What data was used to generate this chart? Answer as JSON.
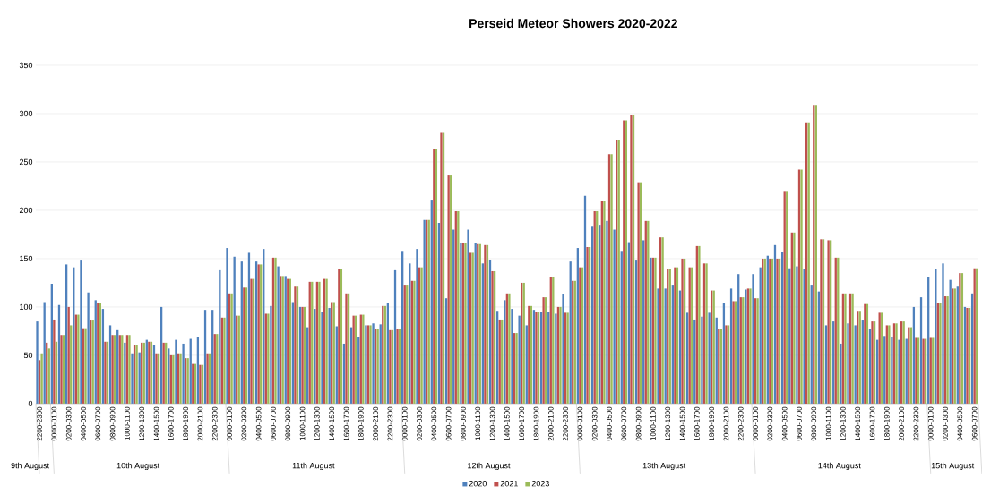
{
  "chart_data": {
    "type": "bar",
    "title": "Perseid Meteor Showers 2020-2022",
    "categories": [
      "2200-2300",
      null,
      "0000-0100",
      null,
      "0200-0300",
      null,
      "0400-0500",
      null,
      "0600-0700",
      null,
      "0800-0900",
      null,
      "1000-1100",
      null,
      "1200-1300",
      null,
      "1400-1500",
      null,
      "1600-1700",
      null,
      "1800-1900",
      null,
      "2000-2100",
      null,
      "2200-2300",
      null,
      "0000-0100",
      null,
      "0200-0300",
      null,
      "0400-0500",
      null,
      "0600-0700",
      null,
      "0800-0900",
      null,
      "1000-1100",
      null,
      "1200-1300",
      null,
      "1400-1500",
      null,
      "1600-1700",
      null,
      "1800-1900",
      null,
      "2000-2100",
      null,
      "2200-2300",
      null,
      "0000-0100",
      null,
      "0200-0300",
      null,
      "0400-0500",
      null,
      "0600-0700",
      null,
      "0800-0900",
      null,
      "1000-1100",
      null,
      "1200-1300",
      null,
      "1400-1500",
      null,
      "1600-1700",
      null,
      "1800-1900",
      null,
      "2000-2100",
      null,
      "2200-2300",
      null,
      "0000-0100",
      null,
      "0200-0300",
      null,
      "0400-0500",
      null,
      "0600-0700",
      null,
      "0800-0900",
      null,
      "1000-1100",
      null,
      "1200-1300",
      null,
      "1400-1500",
      null,
      "1600-1700",
      null,
      "1800-1900",
      null,
      "2000-2100",
      null,
      "2200-2300",
      null,
      "0000-0100",
      null,
      "0200-0300",
      null,
      "0400-0500",
      null,
      "0600-0700",
      null,
      "0800-0900",
      null,
      "1000-1100",
      null,
      "1200-1300",
      null,
      "1400-1500",
      null,
      "1600-1700",
      null,
      "1800-1900",
      null,
      "2000-2100",
      null,
      "2200-2300",
      null,
      "0000-0100",
      null,
      "0200-0300",
      null,
      "0400-0500",
      null,
      "0600-0700"
    ],
    "series": [
      {
        "name": "2020",
        "color": "#4f81bd",
        "values": [
          85,
          105,
          124,
          102,
          144,
          141,
          148,
          115,
          107,
          98,
          81,
          76,
          63,
          52,
          53,
          66,
          61,
          100,
          57,
          66,
          62,
          67,
          69,
          97,
          97,
          138,
          161,
          152,
          147,
          156,
          147,
          160,
          101,
          142,
          132,
          105,
          100,
          79,
          98,
          95,
          99,
          80,
          62,
          79,
          69,
          81,
          83,
          82,
          104,
          138,
          158,
          145,
          160,
          190,
          211,
          187,
          109,
          180,
          166,
          180,
          166,
          145,
          149,
          96,
          107,
          98,
          91,
          81,
          97,
          95,
          95,
          93,
          113,
          147,
          161,
          215,
          183,
          185,
          189,
          180,
          158,
          167,
          148,
          169,
          151,
          119,
          119,
          123,
          117,
          94,
          87,
          90,
          94,
          89,
          104,
          119,
          134,
          118,
          134,
          141,
          153,
          164,
          157,
          140,
          142,
          139,
          123,
          116,
          81,
          85,
          62,
          83,
          81,
          86,
          77,
          66,
          70,
          69,
          66,
          67,
          100,
          110,
          131,
          139,
          145,
          128,
          121,
          100,
          114
        ]
      },
      {
        "name": "2021",
        "color": "#c0504d",
        "values": [
          45,
          63,
          87,
          71,
          100,
          92,
          78,
          86,
          104,
          64,
          71,
          71,
          71,
          61,
          63,
          64,
          52,
          63,
          50,
          52,
          47,
          41,
          40,
          52,
          72,
          89,
          114,
          91,
          120,
          129,
          144,
          93,
          151,
          132,
          129,
          121,
          100,
          126,
          126,
          129,
          105,
          139,
          114,
          91,
          92,
          81,
          77,
          101,
          76,
          77,
          123,
          127,
          141,
          190,
          263,
          280,
          236,
          199,
          166,
          156,
          165,
          164,
          137,
          87,
          114,
          73,
          125,
          101,
          95,
          110,
          131,
          100,
          94,
          127,
          141,
          162,
          199,
          210,
          258,
          273,
          293,
          298,
          229,
          189,
          151,
          172,
          139,
          141,
          150,
          141,
          163,
          145,
          117,
          77,
          81,
          106,
          110,
          119,
          109,
          150,
          150,
          150,
          220,
          177,
          242,
          291,
          309,
          170,
          169,
          151,
          114,
          114,
          96,
          103,
          85,
          94,
          81,
          83,
          85,
          79,
          68,
          67,
          68,
          104,
          111,
          119,
          135,
          99,
          140
        ]
      },
      {
        "name": "2023",
        "color": "#9bbb59",
        "values": [
          52,
          57,
          64,
          71,
          81,
          92,
          78,
          86,
          104,
          64,
          71,
          71,
          71,
          61,
          63,
          64,
          52,
          63,
          50,
          52,
          47,
          41,
          40,
          52,
          72,
          89,
          114,
          91,
          120,
          129,
          144,
          93,
          151,
          132,
          129,
          121,
          100,
          126,
          126,
          129,
          105,
          139,
          114,
          91,
          92,
          81,
          77,
          101,
          76,
          77,
          123,
          127,
          141,
          190,
          263,
          280,
          236,
          199,
          166,
          156,
          165,
          164,
          137,
          87,
          114,
          73,
          125,
          101,
          95,
          110,
          131,
          100,
          94,
          127,
          141,
          162,
          199,
          210,
          258,
          273,
          293,
          298,
          229,
          189,
          151,
          172,
          139,
          141,
          150,
          141,
          163,
          145,
          117,
          77,
          81,
          106,
          110,
          119,
          109,
          150,
          150,
          150,
          220,
          177,
          242,
          291,
          309,
          170,
          169,
          151,
          114,
          114,
          96,
          103,
          85,
          94,
          81,
          83,
          85,
          79,
          68,
          67,
          68,
          104,
          111,
          119,
          135,
          99,
          140
        ]
      }
    ],
    "ylim": [
      0,
      350
    ],
    "yticks": [
      0,
      50,
      100,
      150,
      200,
      250,
      300,
      350
    ],
    "grid": "y",
    "legend": "bottom",
    "annotations": [
      "9th August",
      "10th August",
      "11th August",
      "12th August",
      "13th August",
      "14th August",
      "15th August"
    ]
  }
}
